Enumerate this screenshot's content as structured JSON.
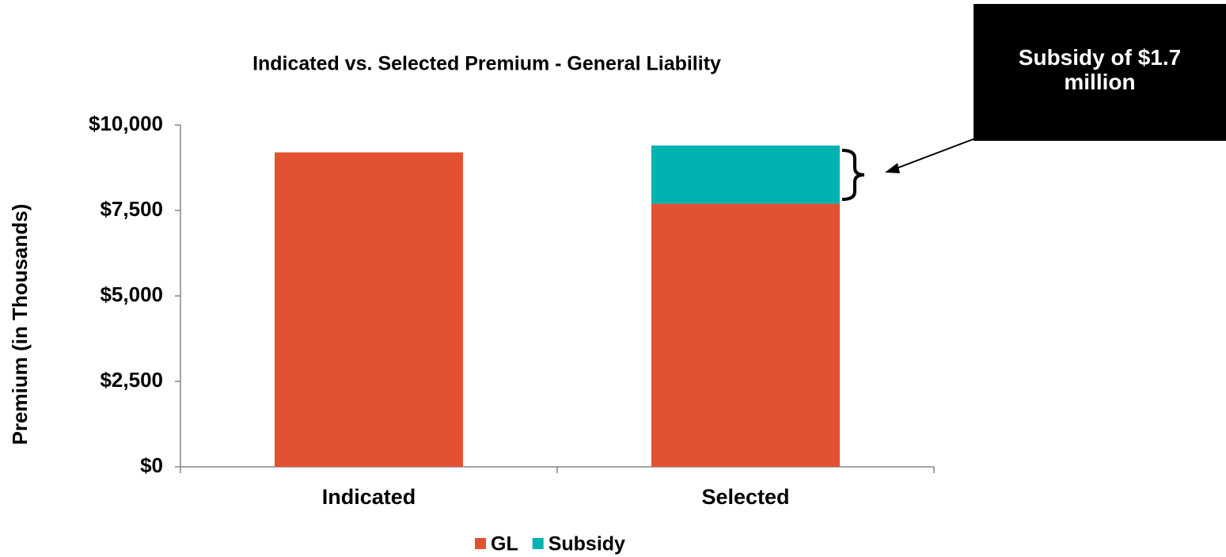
{
  "chart_data": {
    "type": "bar",
    "stacked": true,
    "title": "Indicated vs. Selected Premium - General Liability",
    "y_label": "Premium (in Thousands)",
    "categories": [
      "Indicated",
      "Selected"
    ],
    "series": [
      {
        "name": "GL",
        "color": "#e35133",
        "values": [
          9200,
          7700
        ]
      },
      {
        "name": "Subsidy",
        "color": "#00b3b0",
        "values": [
          null,
          1700
        ]
      }
    ],
    "ylim": [
      0,
      10000
    ],
    "yticks": [
      {
        "value": 0,
        "label": "$0"
      },
      {
        "value": 2500,
        "label": "$2,500"
      },
      {
        "value": 5000,
        "label": "$5,000"
      },
      {
        "value": 7500,
        "label": "$7,500"
      },
      {
        "value": 10000,
        "label": "$10,000"
      }
    ],
    "grid": false,
    "legend": "bottom",
    "annotation": "Subsidy of $1.7 million"
  }
}
